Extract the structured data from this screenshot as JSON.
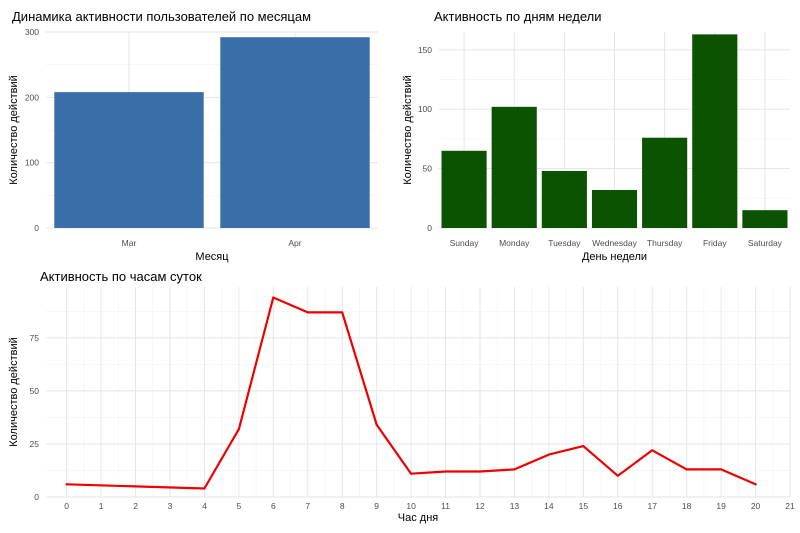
{
  "chart_data": [
    {
      "type": "bar",
      "title": "Динамика активности пользователей по месяцам",
      "xlabel": "Месяц",
      "ylabel": "Количество действий",
      "categories": [
        "Mar",
        "Apr"
      ],
      "values": [
        208,
        292
      ],
      "ylim": [
        0,
        300
      ],
      "yticks": [
        0,
        100,
        200,
        300
      ],
      "color": "#3A6EA8",
      "grid": true
    },
    {
      "type": "bar",
      "title": "Активность по дням недели",
      "xlabel": "День недели",
      "ylabel": "Количество действий",
      "categories": [
        "Sunday",
        "Monday",
        "Tuesday",
        "Wednesday",
        "Thursday",
        "Friday",
        "Saturday"
      ],
      "values": [
        65,
        102,
        48,
        32,
        76,
        163,
        15
      ],
      "ylim": [
        0,
        165
      ],
      "yticks": [
        0,
        50,
        100,
        150
      ],
      "color": "#0B5300",
      "grid": true
    },
    {
      "type": "line",
      "title": "Активность по часам суток",
      "xlabel": "Час дня",
      "ylabel": "Количество действий",
      "x": [
        0,
        4,
        5,
        6,
        7,
        8,
        9,
        10,
        11,
        12,
        13,
        14,
        15,
        16,
        17,
        18,
        19,
        20
      ],
      "y": [
        6,
        4,
        32,
        94,
        87,
        87,
        34,
        11,
        12,
        12,
        13,
        20,
        24,
        10,
        22,
        13,
        13,
        6
      ],
      "xticks": [
        0,
        1,
        2,
        3,
        4,
        5,
        6,
        7,
        8,
        9,
        10,
        11,
        12,
        13,
        14,
        15,
        16,
        17,
        18,
        19,
        20,
        21
      ],
      "yticks": [
        0,
        25,
        50,
        75
      ],
      "xlim": [
        -0.6,
        21
      ],
      "ylim": [
        0,
        94
      ],
      "color": "#EE0000",
      "grid": true
    }
  ]
}
